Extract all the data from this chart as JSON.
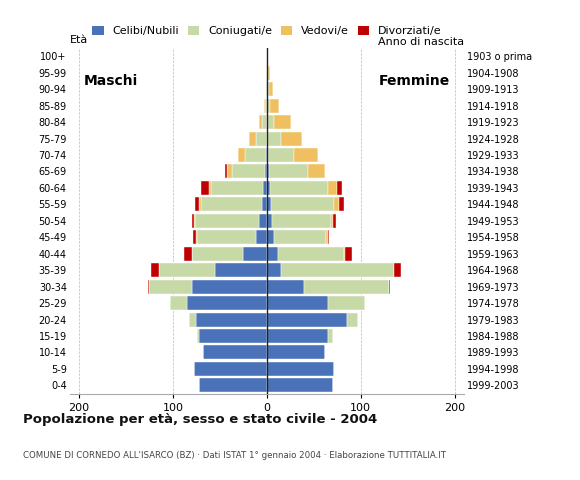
{
  "age_groups_bottom_to_top": [
    "0-4",
    "5-9",
    "10-14",
    "15-19",
    "20-24",
    "25-29",
    "30-34",
    "35-39",
    "40-44",
    "45-49",
    "50-54",
    "55-59",
    "60-64",
    "65-69",
    "70-74",
    "75-79",
    "80-84",
    "85-89",
    "90-94",
    "95-99",
    "100+"
  ],
  "birth_years_bottom_to_top": [
    "1999-2003",
    "1994-1998",
    "1989-1993",
    "1984-1988",
    "1979-1983",
    "1974-1978",
    "1969-1973",
    "1964-1968",
    "1959-1963",
    "1954-1958",
    "1949-1953",
    "1944-1948",
    "1939-1943",
    "1934-1938",
    "1929-1933",
    "1924-1928",
    "1919-1923",
    "1914-1918",
    "1909-1913",
    "1904-1908",
    "1903 o prima"
  ],
  "males_celibe": [
    72,
    78,
    68,
    72,
    75,
    85,
    80,
    55,
    25,
    12,
    8,
    5,
    4,
    2,
    1,
    0,
    0,
    0,
    0,
    0,
    0
  ],
  "males_coniugato": [
    0,
    0,
    0,
    2,
    8,
    18,
    45,
    60,
    55,
    62,
    68,
    65,
    55,
    35,
    22,
    12,
    5,
    2,
    1,
    0,
    0
  ],
  "males_vedovo": [
    0,
    0,
    0,
    0,
    0,
    0,
    0,
    0,
    0,
    1,
    1,
    2,
    3,
    5,
    8,
    7,
    3,
    1,
    0,
    0,
    0
  ],
  "males_divorziato": [
    0,
    0,
    0,
    0,
    0,
    0,
    1,
    8,
    8,
    4,
    3,
    4,
    8,
    2,
    0,
    0,
    0,
    0,
    0,
    0,
    0
  ],
  "females_nubile": [
    70,
    72,
    62,
    65,
    85,
    65,
    40,
    15,
    12,
    8,
    6,
    4,
    3,
    2,
    1,
    0,
    0,
    0,
    0,
    0,
    0
  ],
  "females_coniugata": [
    0,
    0,
    0,
    5,
    12,
    40,
    90,
    120,
    70,
    55,
    62,
    68,
    62,
    42,
    28,
    15,
    8,
    3,
    2,
    1,
    0
  ],
  "females_vedova": [
    0,
    0,
    0,
    0,
    0,
    0,
    0,
    0,
    1,
    2,
    3,
    5,
    10,
    18,
    25,
    22,
    18,
    10,
    5,
    2,
    0
  ],
  "females_divorziata": [
    0,
    0,
    0,
    0,
    0,
    0,
    1,
    8,
    8,
    1,
    3,
    5,
    5,
    0,
    0,
    0,
    0,
    0,
    0,
    0,
    0
  ],
  "color_celibe": "#4a72b8",
  "color_coniugato": "#c8d9a8",
  "color_vedovo": "#f0c060",
  "color_divorziato": "#c00000",
  "title": "Popolazione per età, sesso e stato civile - 2004",
  "subtitle": "COMUNE DI CORNEDO ALL'ISARCO (BZ) · Dati ISTAT 1° gennaio 2004 · Elaborazione TUTTITALIA.IT",
  "ylabel_left": "Età",
  "ylabel_right": "Anno di nascita",
  "label_maschi": "Maschi",
  "label_femmine": "Femmine",
  "legend_labels": [
    "Celibi/Nubili",
    "Coniugati/e",
    "Vedovi/e",
    "Divorziati/e"
  ],
  "bg_color": "#ffffff",
  "grid_color": "#bbbbbb"
}
